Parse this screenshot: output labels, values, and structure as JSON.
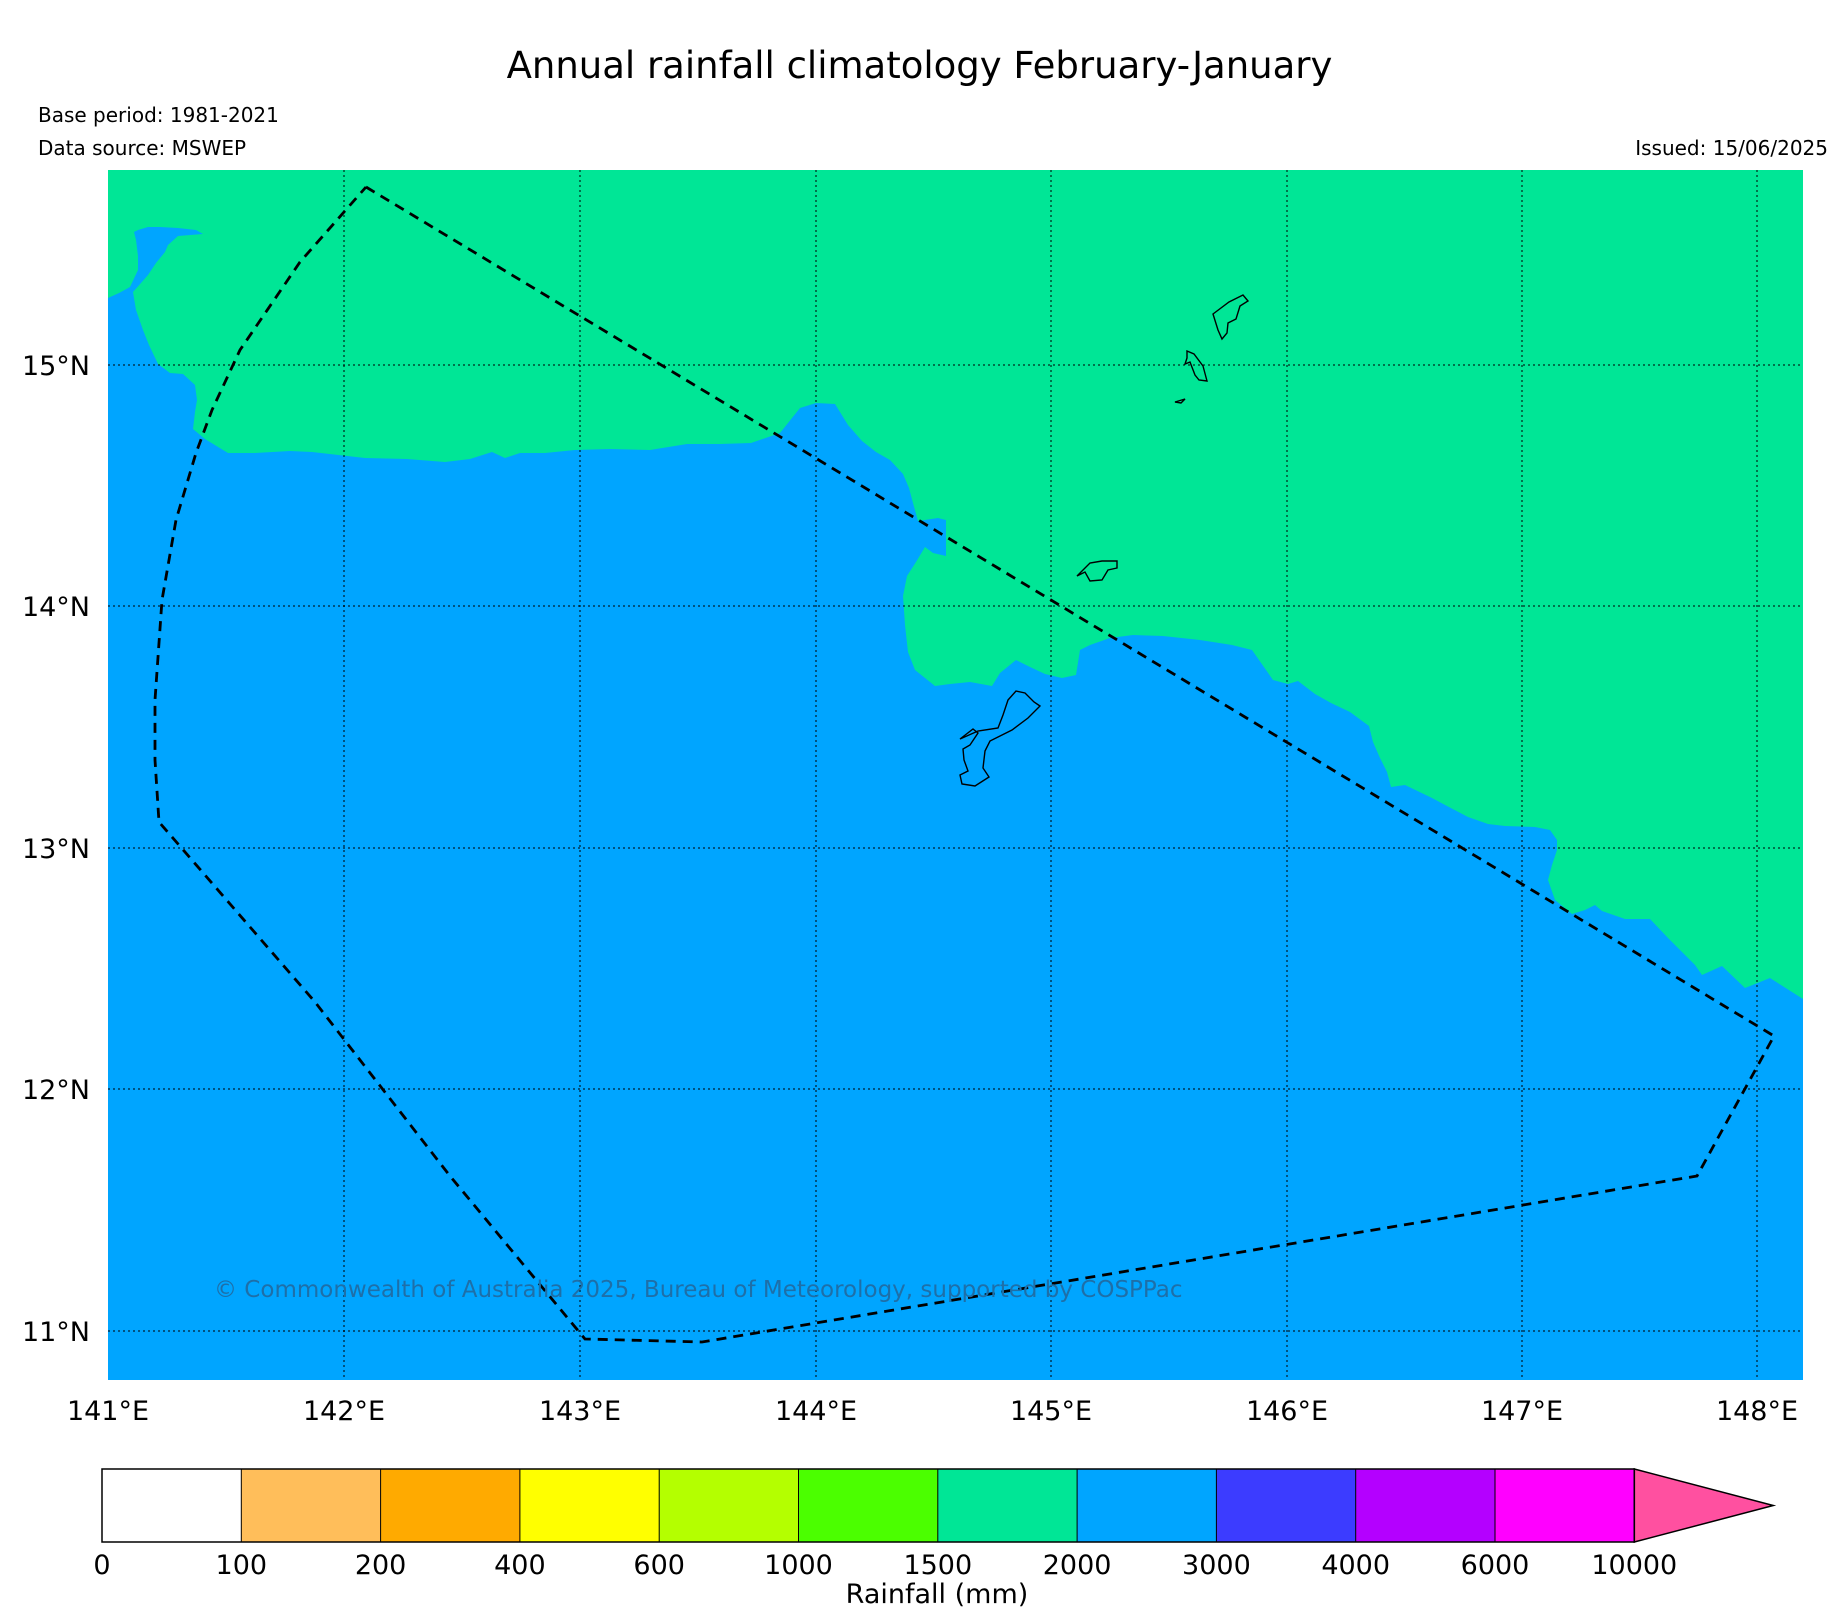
{
  "title": "Annual rainfall climatology February-January",
  "meta": {
    "base_period": "Base period: 1981-2021",
    "data_source": "Data source: MSWEP",
    "issued": "Issued: 15/06/2025"
  },
  "map": {
    "lon_labels": [
      "141°E",
      "142°E",
      "143°E",
      "144°E",
      "145°E",
      "146°E",
      "147°E",
      "148°E"
    ],
    "lat_labels": [
      "15°N",
      "14°N",
      "13°N",
      "12°N",
      "11°N"
    ],
    "copyright": "© Commonwealth of Australia 2025, Bureau of Meteorology, supported by COSPPac",
    "colors": {
      "band_1500_2000": "#00e696",
      "band_2000_3000": "#00a5ff"
    }
  },
  "colorbar": {
    "title": "Rainfall (mm)",
    "ticks": [
      "0",
      "100",
      "200",
      "400",
      "600",
      "1000",
      "1500",
      "2000",
      "3000",
      "4000",
      "6000",
      "10000"
    ],
    "colors": [
      "#ffffff",
      "#ffbe5a",
      "#ffaa00",
      "#ffff00",
      "#b4ff00",
      "#4bff00",
      "#00e696",
      "#00a5ff",
      "#3c3cff",
      "#b400ff",
      "#ff00ff"
    ],
    "extend_color": "#ff50a0"
  }
}
